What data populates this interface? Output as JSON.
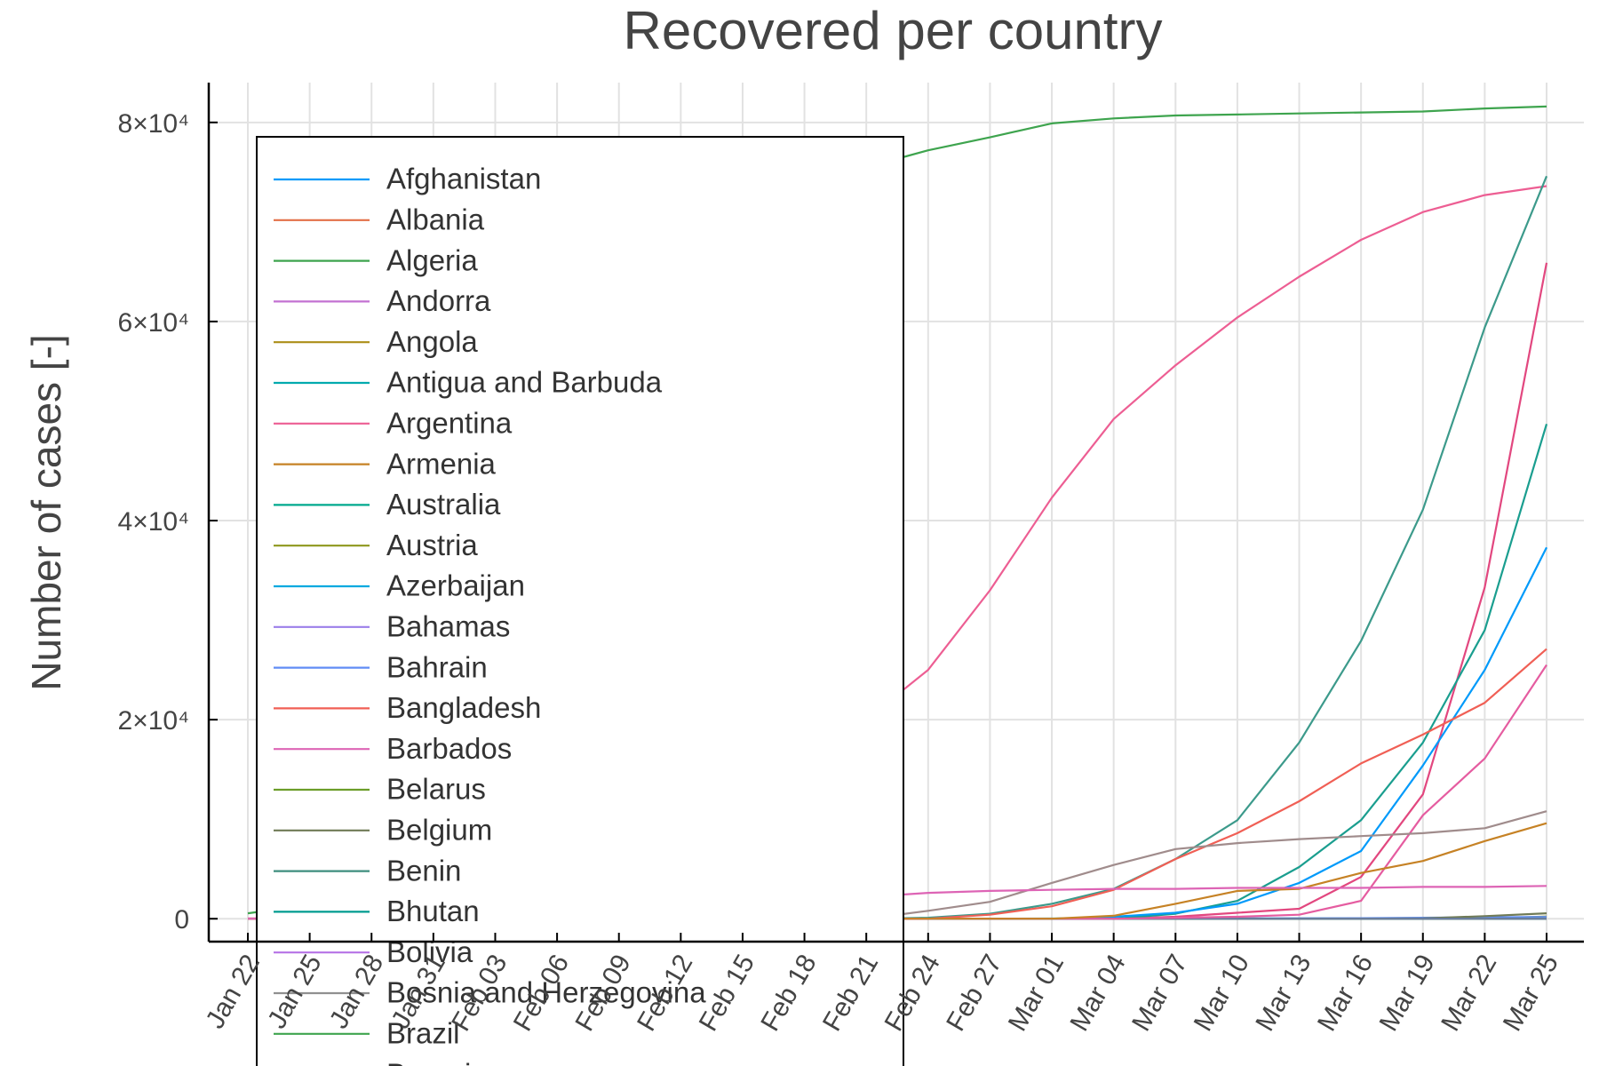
{
  "chart_data": {
    "type": "line",
    "title": "Recovered per country",
    "y_label": "Number of cases [-]",
    "categories": [
      "Jan 22",
      "Jan 25",
      "Jan 28",
      "Jan 31",
      "Feb 03",
      "Feb 06",
      "Feb 09",
      "Feb 12",
      "Feb 15",
      "Feb 18",
      "Feb 21",
      "Feb 24",
      "Feb 27",
      "Mar 01",
      "Mar 04",
      "Mar 07",
      "Mar 10",
      "Mar 13",
      "Mar 16",
      "Mar 19",
      "Mar 22",
      "Mar 25"
    ],
    "ylim": [
      -2300,
      84000
    ],
    "yticks": [
      0,
      {
        "value": 20000,
        "label": "2×10⁴"
      },
      {
        "value": 40000,
        "label": "4×10⁴"
      },
      {
        "value": 60000,
        "label": "6×10⁴"
      },
      {
        "value": 80000,
        "label": "8×10⁴"
      }
    ],
    "grid": true,
    "legend": "top left",
    "series": [
      {
        "name": "Afghanistan",
        "color": "#009AFA",
        "values": [
          0,
          0,
          0,
          0,
          0,
          0,
          0,
          0,
          0,
          0,
          0,
          0,
          0,
          0,
          0,
          0,
          0,
          0,
          0,
          0,
          1,
          1
        ]
      },
      {
        "name": "Albania",
        "color": "#E36F47",
        "values": [
          0,
          0,
          0,
          0,
          0,
          0,
          0,
          0,
          0,
          0,
          0,
          0,
          0,
          0,
          0,
          0,
          0,
          0,
          0,
          0,
          2,
          10
        ]
      },
      {
        "name": "Algeria",
        "color": "#3EA44E",
        "values": [
          0,
          0,
          0,
          0,
          0,
          0,
          0,
          0,
          0,
          0,
          0,
          0,
          0,
          0,
          0,
          0,
          0,
          0,
          0,
          12,
          32,
          65
        ]
      },
      {
        "name": "Andorra",
        "color": "#C371D2",
        "values": [
          0,
          0,
          0,
          0,
          0,
          0,
          0,
          0,
          0,
          0,
          0,
          0,
          0,
          0,
          0,
          0,
          0,
          0,
          0,
          0,
          1,
          1
        ]
      },
      {
        "name": "Angola",
        "color": "#AC8E18",
        "values": [
          0,
          0,
          0,
          0,
          0,
          0,
          0,
          0,
          0,
          0,
          0,
          0,
          0,
          0,
          0,
          0,
          0,
          0,
          0,
          0,
          0,
          0
        ]
      },
      {
        "name": "Antigua and Barbuda",
        "color": "#00AAAE",
        "values": [
          0,
          0,
          0,
          0,
          0,
          0,
          0,
          0,
          0,
          0,
          0,
          0,
          0,
          0,
          0,
          0,
          0,
          0,
          0,
          0,
          0,
          0
        ]
      },
      {
        "name": "Argentina",
        "color": "#ED5E93",
        "values": [
          0,
          0,
          0,
          0,
          0,
          0,
          0,
          0,
          0,
          0,
          0,
          0,
          0,
          0,
          0,
          0,
          0,
          0,
          0,
          3,
          3,
          52
        ]
      },
      {
        "name": "Armenia",
        "color": "#C68225",
        "values": [
          0,
          0,
          0,
          0,
          0,
          0,
          0,
          0,
          0,
          0,
          0,
          0,
          0,
          0,
          0,
          0,
          0,
          0,
          0,
          1,
          1,
          28
        ]
      },
      {
        "name": "Australia",
        "color": "#00A98D",
        "values": [
          0,
          0,
          0,
          0,
          0,
          2,
          2,
          8,
          10,
          11,
          15,
          15,
          15,
          21,
          21,
          21,
          21,
          21,
          23,
          46,
          88,
          117
        ]
      },
      {
        "name": "Austria",
        "color": "#8E971D",
        "values": [
          0,
          0,
          0,
          0,
          0,
          0,
          0,
          0,
          0,
          0,
          0,
          0,
          0,
          0,
          0,
          0,
          0,
          0,
          0,
          6,
          9,
          225
        ]
      },
      {
        "name": "Azerbaijan",
        "color": "#00A9E0",
        "values": [
          0,
          0,
          0,
          0,
          0,
          0,
          0,
          0,
          0,
          0,
          0,
          0,
          0,
          0,
          0,
          0,
          0,
          0,
          0,
          6,
          7,
          15
        ]
      },
      {
        "name": "Bahamas",
        "color": "#9B7FE9",
        "values": [
          0,
          0,
          0,
          0,
          0,
          0,
          0,
          0,
          0,
          0,
          0,
          0,
          0,
          0,
          0,
          0,
          0,
          0,
          0,
          0,
          0,
          0
        ]
      },
      {
        "name": "Bahrain",
        "color": "#618DF6",
        "values": [
          0,
          0,
          0,
          0,
          0,
          0,
          0,
          0,
          0,
          0,
          0,
          0,
          0,
          0,
          0,
          0,
          35,
          44,
          60,
          100,
          145,
          177
        ]
      },
      {
        "name": "Bangladesh",
        "color": "#F05F55",
        "values": [
          0,
          0,
          0,
          0,
          0,
          0,
          0,
          0,
          0,
          0,
          0,
          0,
          0,
          0,
          0,
          0,
          0,
          0,
          0,
          3,
          5,
          7
        ]
      },
      {
        "name": "Barbados",
        "color": "#DD64B5",
        "values": [
          0,
          0,
          0,
          0,
          0,
          0,
          0,
          0,
          0,
          0,
          0,
          0,
          0,
          0,
          0,
          0,
          0,
          0,
          0,
          0,
          0,
          0
        ]
      },
      {
        "name": "Belarus",
        "color": "#6B9D29",
        "values": [
          0,
          0,
          0,
          0,
          0,
          0,
          0,
          0,
          0,
          0,
          0,
          0,
          0,
          0,
          0,
          0,
          0,
          0,
          3,
          3,
          15,
          22
        ]
      },
      {
        "name": "Belgium",
        "color": "#6F7A56",
        "values": [
          0,
          0,
          0,
          0,
          0,
          0,
          0,
          0,
          1,
          1,
          1,
          1,
          1,
          1,
          1,
          1,
          1,
          1,
          1,
          31,
          263,
          547
        ]
      },
      {
        "name": "Benin",
        "color": "#3E8E7E",
        "values": [
          0,
          0,
          0,
          0,
          0,
          0,
          0,
          0,
          0,
          0,
          0,
          0,
          0,
          0,
          0,
          0,
          0,
          0,
          0,
          0,
          0,
          0
        ]
      },
      {
        "name": "Bhutan",
        "color": "#009B8F",
        "values": [
          0,
          0,
          0,
          0,
          0,
          0,
          0,
          0,
          0,
          0,
          0,
          0,
          0,
          0,
          0,
          0,
          0,
          0,
          0,
          0,
          0,
          0
        ]
      },
      {
        "name": "Bolivia",
        "color": "#B672E6",
        "values": [
          0,
          0,
          0,
          0,
          0,
          0,
          0,
          0,
          0,
          0,
          0,
          0,
          0,
          0,
          0,
          0,
          0,
          0,
          0,
          0,
          0,
          0
        ]
      },
      {
        "name": "Bosnia and Herzegovina",
        "color": "#909090",
        "values": [
          0,
          0,
          0,
          0,
          0,
          0,
          0,
          0,
          0,
          0,
          0,
          0,
          0,
          0,
          0,
          0,
          0,
          0,
          0,
          0,
          2,
          3
        ]
      },
      {
        "name": "Brazil",
        "color": "#3EA44E",
        "values": [
          0,
          0,
          0,
          0,
          0,
          0,
          0,
          0,
          0,
          0,
          0,
          0,
          0,
          0,
          0,
          0,
          0,
          0,
          0,
          0,
          2,
          2
        ]
      },
      {
        "name": "Brunei",
        "color": "#6C7BA0",
        "values": [
          0,
          0,
          0,
          0,
          0,
          0,
          0,
          0,
          0,
          0,
          0,
          0,
          0,
          0,
          0,
          0,
          0,
          0,
          0,
          1,
          2,
          3
        ]
      },
      {
        "color": "#3EA44E",
        "values": [
          548,
          1400,
          5500,
          9800,
          17200,
          28000,
          37000,
          44700,
          68000,
          72400,
          75500,
          77200,
          78500,
          79900,
          80400,
          80700,
          80800,
          80900,
          81000,
          81100,
          81400,
          81600
        ]
      },
      {
        "color": "#ED5E93",
        "values": [
          28,
          39,
          107,
          222,
          620,
          1500,
          3000,
          5900,
          9900,
          14400,
          20000,
          25000,
          33000,
          42300,
          50200,
          55600,
          60400,
          64500,
          68200,
          71000,
          72700,
          73600
        ]
      },
      {
        "color": "#3C9A8B",
        "values": [
          0,
          0,
          0,
          0,
          0,
          0,
          0,
          0,
          0,
          0,
          0,
          100,
          500,
          1500,
          3000,
          6000,
          9900,
          17700,
          27900,
          41100,
          59400,
          74600
        ]
      },
      {
        "color": "#E2477F",
        "values": [
          0,
          0,
          0,
          0,
          0,
          0,
          0,
          0,
          0,
          0,
          0,
          0,
          0,
          0,
          0,
          200,
          600,
          1000,
          4200,
          12500,
          33300,
          65900
        ]
      },
      {
        "color": "#1A9E8F",
        "values": [
          0,
          0,
          0,
          0,
          0,
          0,
          0,
          0,
          0,
          0,
          0,
          0,
          0,
          0,
          0,
          500,
          1800,
          5200,
          9900,
          17700,
          29000,
          49700
        ]
      },
      {
        "color": "#009AFA",
        "values": [
          0,
          0,
          0,
          0,
          0,
          0,
          0,
          0,
          0,
          0,
          0,
          0,
          0,
          0,
          200,
          600,
          1500,
          3600,
          6800,
          15400,
          25000,
          37300
        ]
      },
      {
        "color": "#F05F55",
        "values": [
          0,
          0,
          0,
          0,
          0,
          0,
          0,
          0,
          0,
          0,
          0,
          0,
          400,
          1250,
          2900,
          6000,
          8600,
          11800,
          15600,
          18500,
          21700,
          27100
        ]
      },
      {
        "color": "#E55CA0",
        "values": [
          0,
          0,
          0,
          0,
          0,
          0,
          0,
          0,
          0,
          0,
          0,
          0,
          0,
          0,
          0,
          100,
          200,
          400,
          1800,
          10400,
          16100,
          25500
        ]
      },
      {
        "color": "#A08C8C",
        "values": [
          0,
          0,
          0,
          0,
          0,
          0,
          0,
          0,
          0,
          0,
          0,
          800,
          1700,
          3600,
          5400,
          7000,
          7600,
          8000,
          8300,
          8600,
          9100,
          10800
        ]
      },
      {
        "color": "#C68225",
        "values": [
          0,
          0,
          0,
          0,
          0,
          0,
          0,
          0,
          0,
          0,
          0,
          0,
          0,
          0,
          300,
          1500,
          2800,
          3000,
          4600,
          5800,
          7800,
          9600
        ]
      },
      {
        "color": "#DD64B5",
        "values": [
          0,
          0,
          0,
          0,
          0,
          0,
          0,
          0,
          0,
          0,
          2200,
          2600,
          2800,
          2900,
          3000,
          3000,
          3100,
          3100,
          3100,
          3200,
          3200,
          3300
        ]
      }
    ]
  }
}
